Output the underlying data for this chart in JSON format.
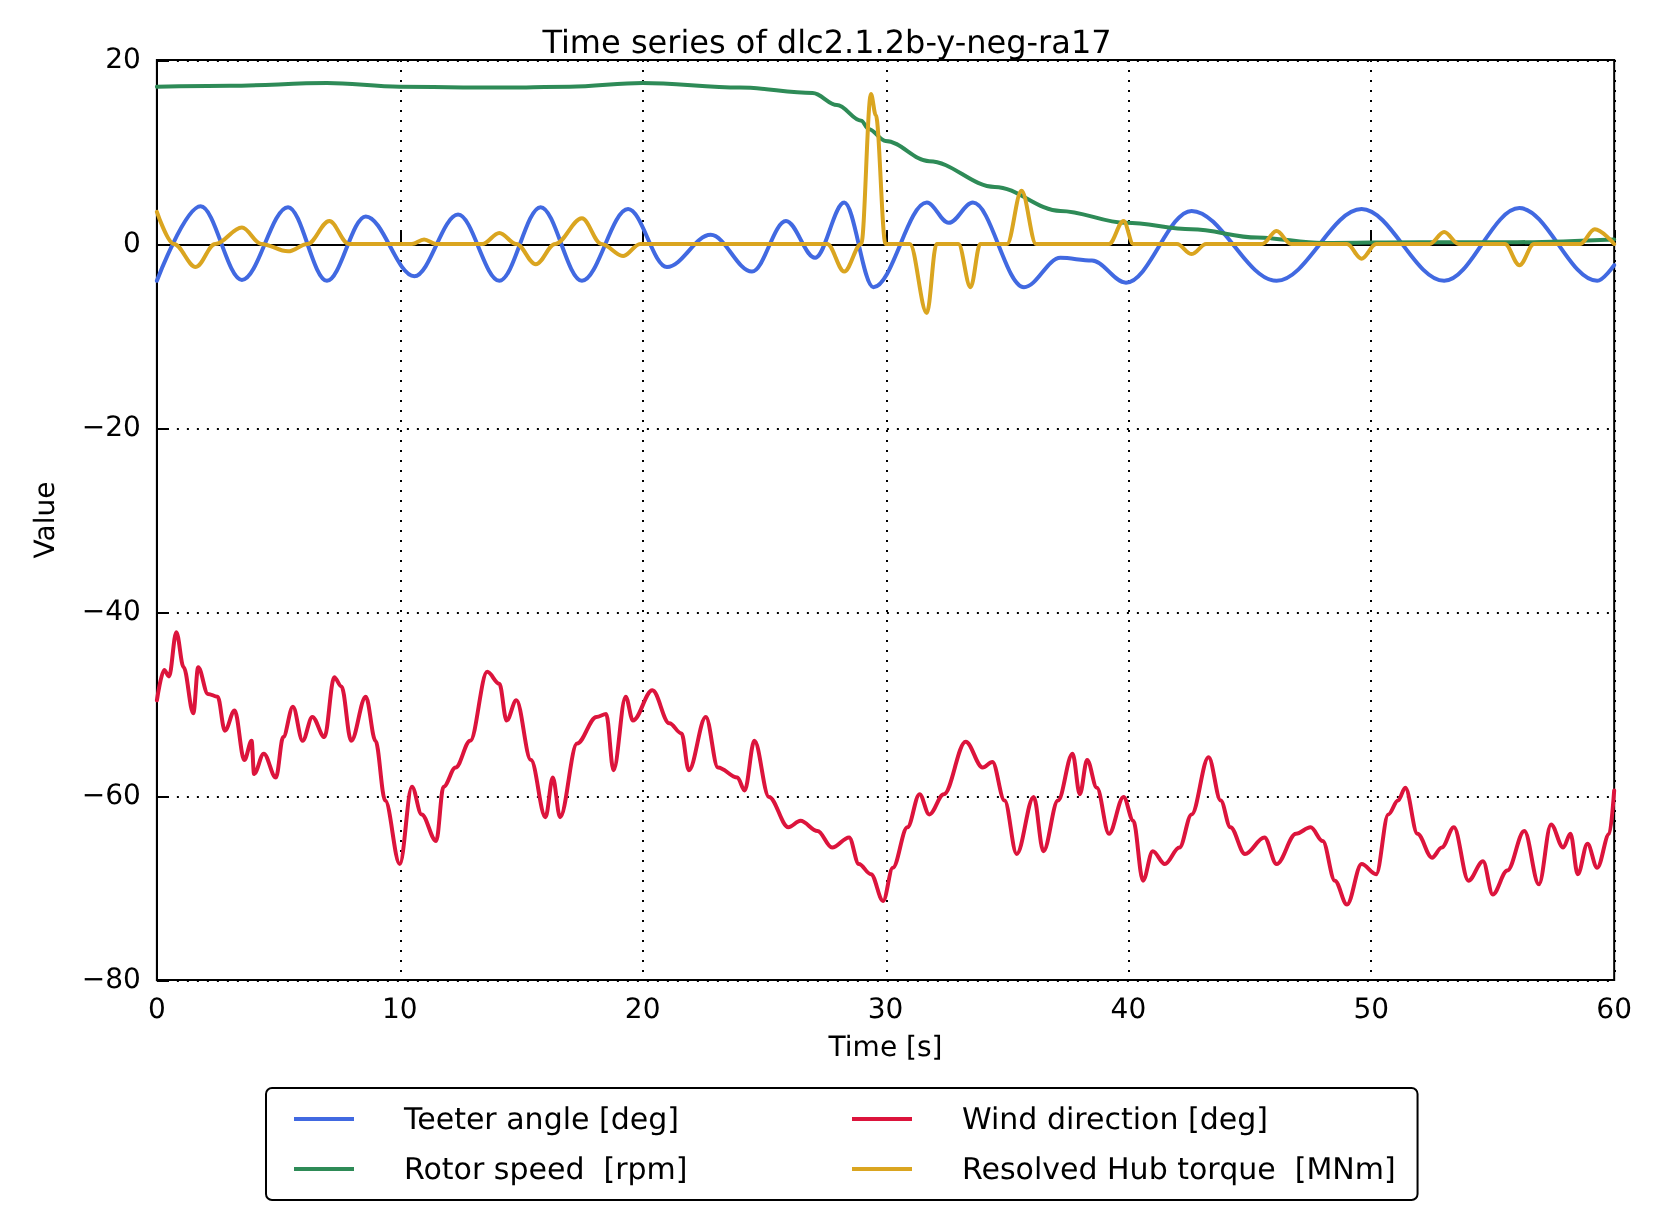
{
  "chart_data": {
    "type": "line",
    "title": "Time series of dlc2.1.2b-y-neg-ra17",
    "xlabel": "Time [s]",
    "ylabel": "Value",
    "xlim": [
      0,
      60
    ],
    "xticks": [
      0,
      10,
      20,
      30,
      40,
      50,
      60
    ],
    "ylim": [
      -80,
      20
    ],
    "yticks": [
      -80,
      -60,
      -40,
      -20,
      0,
      20
    ],
    "grid": true,
    "legend": "bottom",
    "marker": "none",
    "line_style": "solid",
    "series": [
      {
        "name": "Teeter angle [deg]",
        "color": "#4169e1",
        "x": [
          0,
          1.8,
          3.5,
          5.4,
          7.0,
          8.6,
          10.6,
          12.4,
          14.1,
          15.8,
          17.5,
          19.4,
          21.0,
          22.8,
          24.5,
          25.9,
          27.1,
          28.3,
          29.5,
          31.7,
          32.6,
          33.6,
          35.7,
          37.2,
          38.5,
          39.9,
          42.6,
          46.1,
          49.6,
          53.0,
          56.1,
          59.3,
          60
        ],
        "values": [
          -4,
          4.1,
          -3.9,
          4,
          -4,
          3,
          -3.5,
          3.2,
          -4,
          4,
          -4,
          3.8,
          -2.5,
          1,
          -3,
          2.5,
          -1.5,
          4.5,
          -4.7,
          4.5,
          2.3,
          4.5,
          -4.7,
          -1.5,
          -1.8,
          -4.2,
          3.6,
          -4,
          3.8,
          -4,
          3.9,
          -4,
          -2.3
        ]
      },
      {
        "name": "Rotor speed  [rpm]",
        "color": "#2e8b57",
        "x": [
          0,
          3,
          7,
          10,
          14,
          17,
          20,
          24,
          27,
          28,
          29,
          29.3,
          30,
          31.8,
          34.5,
          37.2,
          39.9,
          42.6,
          45.3,
          48,
          52,
          56,
          60
        ],
        "values": [
          17.1,
          17.2,
          17.5,
          17.1,
          17.0,
          17.1,
          17.5,
          17.0,
          16.4,
          15.1,
          13.4,
          12.5,
          11.2,
          9,
          6.2,
          3.6,
          2.3,
          1.6,
          0.7,
          0.1,
          0.2,
          0.2,
          0.5
        ]
      },
      {
        "name": "Wind direction [deg]",
        "color": "#dc143c",
        "x": [
          0,
          0.3,
          0.5,
          0.8,
          1.1,
          1.5,
          1.7,
          2.1,
          2.5,
          2.8,
          3.2,
          3.6,
          3.9,
          4.0,
          4.4,
          4.9,
          5.2,
          5.6,
          6.0,
          6.4,
          6.9,
          7.3,
          7.6,
          8.0,
          8.6,
          9.0,
          9.4,
          10.0,
          10.5,
          10.9,
          11.5,
          11.8,
          12.3,
          12.9,
          13.6,
          14.1,
          14.4,
          14.8,
          15.4,
          16.0,
          16.3,
          16.6,
          17.3,
          18.1,
          18.5,
          18.8,
          19.3,
          19.6,
          20.4,
          21.1,
          21.6,
          21.9,
          22.6,
          23.1,
          23.9,
          24.2,
          24.6,
          25.2,
          26.0,
          26.5,
          27.2,
          27.8,
          28.5,
          28.9,
          29.4,
          29.9,
          30.3,
          30.9,
          31.4,
          31.8,
          32.4,
          33.3,
          34.0,
          34.4,
          34.9,
          35.4,
          36.1,
          36.5,
          37.1,
          37.7,
          38.0,
          38.3,
          38.7,
          39.2,
          39.8,
          40.2,
          40.6,
          41.0,
          41.5,
          42.1,
          42.6,
          43.3,
          43.8,
          44.2,
          44.8,
          45.6,
          46.1,
          46.9,
          47.5,
          48.0,
          48.5,
          49.0,
          49.6,
          50.2,
          50.7,
          51.1,
          51.4,
          51.9,
          52.5,
          52.9,
          53.4,
          54.0,
          54.6,
          55.0,
          55.6,
          56.3,
          56.9,
          57.4,
          57.9,
          58.2,
          58.5,
          58.9,
          59.3,
          59.8,
          60
        ],
        "values": [
          -49.6,
          -46.3,
          -47,
          -42.2,
          -46,
          -51,
          -46,
          -48.9,
          -49.2,
          -52.9,
          -50.7,
          -56.1,
          -54,
          -57.6,
          -55.4,
          -58,
          -53.6,
          -50.3,
          -54,
          -51.4,
          -53.6,
          -47.1,
          -48.1,
          -54,
          -49.2,
          -54,
          -60.5,
          -67.4,
          -59,
          -62,
          -64.9,
          -59,
          -56.9,
          -54,
          -46.5,
          -47.8,
          -51.8,
          -49.6,
          -56.1,
          -62.3,
          -58,
          -62.3,
          -54.3,
          -51.4,
          -51.1,
          -57.2,
          -49.2,
          -51.8,
          -48.5,
          -52.1,
          -53.2,
          -57.2,
          -51.4,
          -56.9,
          -58,
          -59.4,
          -54,
          -60.1,
          -63.4,
          -62.7,
          -63.8,
          -65.6,
          -64.5,
          -67.4,
          -68.5,
          -71.4,
          -67.8,
          -63.4,
          -59.8,
          -62,
          -59.8,
          -54.1,
          -56.9,
          -56.3,
          -60.5,
          -66.3,
          -60.1,
          -66,
          -60.5,
          -55.4,
          -59.8,
          -56.1,
          -59.1,
          -64.1,
          -60.1,
          -62.7,
          -69.2,
          -66,
          -67.4,
          -65.6,
          -62,
          -55.8,
          -60.5,
          -63.4,
          -66.3,
          -64.5,
          -67.4,
          -64.1,
          -63.4,
          -64.9,
          -69.2,
          -71.8,
          -67.4,
          -68.5,
          -62,
          -60.5,
          -59.1,
          -64.1,
          -66.7,
          -65.6,
          -63.4,
          -69.2,
          -67.1,
          -70.7,
          -68.1,
          -63.8,
          -69.6,
          -63.1,
          -65.6,
          -64.1,
          -68.5,
          -65.2,
          -67.8,
          -64.1,
          -59.4
        ]
      },
      {
        "name": "Resolved Hub torque  [MNm]",
        "color": "#daa520",
        "x": [
          0,
          0.7,
          1.6,
          2.4,
          3.5,
          4.3,
          5.4,
          6.2,
          7.1,
          7.9,
          10.5,
          11,
          11.5,
          13.4,
          14.1,
          14.8,
          15.6,
          16.4,
          17.5,
          18.3,
          19.2,
          19.9,
          27.6,
          28.3,
          29.0,
          29.4,
          29.6,
          30.0,
          31.0,
          31.7,
          32.1,
          33.0,
          33.5,
          33.9,
          35.0,
          35.6,
          36.2,
          39.2,
          39.8,
          40.2,
          42.0,
          42.6,
          43.2,
          45.5,
          46.1,
          46.7,
          49.0,
          49.6,
          50.2,
          52.4,
          53.0,
          53.6,
          55.5,
          56.1,
          56.7,
          58.6,
          59.2,
          60
        ],
        "values": [
          3.5,
          0,
          -2.5,
          0,
          1.8,
          0,
          -0.8,
          0,
          2.5,
          0,
          0,
          0.5,
          0,
          0,
          1.2,
          0,
          -2.2,
          0,
          2.8,
          0,
          -1.3,
          0,
          0,
          -3,
          0,
          16.3,
          14,
          0,
          0,
          -7.5,
          0,
          0,
          -4.7,
          0,
          0,
          5.8,
          0,
          0,
          2.5,
          0,
          0,
          -1.1,
          0,
          0,
          1.4,
          0,
          0,
          -1.6,
          0,
          0,
          1.3,
          0,
          0,
          -2.3,
          0,
          0,
          1.6,
          0
        ]
      }
    ]
  }
}
